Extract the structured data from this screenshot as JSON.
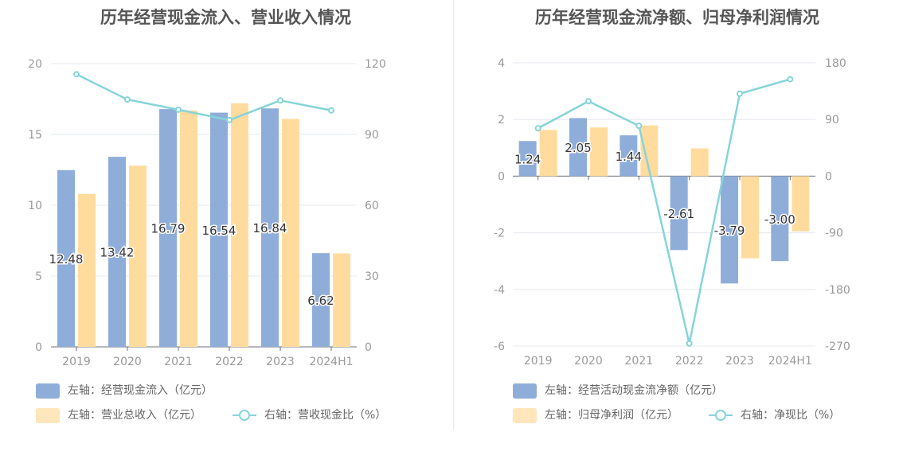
{
  "colors": {
    "bar_primary": "#8fadd9",
    "bar_secondary": "#ffdc9e",
    "line": "#86d4d9",
    "axis": "#999999",
    "grid": "#e6e8ef",
    "label": "#333333"
  },
  "chart_data": [
    {
      "type": "bar",
      "title": "历年经营现金流入、营业收入情况",
      "categories": [
        "2019",
        "2020",
        "2021",
        "2022",
        "2023",
        "2024H1"
      ],
      "y_left_ticks": [
        "20",
        "15",
        "10",
        "5",
        "0"
      ],
      "y_right_ticks": [
        "120",
        "90",
        "60",
        "30",
        "0"
      ],
      "ylim_left": [
        0,
        20
      ],
      "ylim_right": [
        0,
        120
      ],
      "series": [
        {
          "name": "左轴：经营现金流入（亿元）",
          "axis": "left",
          "kind": "bar",
          "values": [
            12.48,
            13.42,
            16.79,
            16.54,
            16.84,
            6.62
          ],
          "labels": [
            "12.48",
            "13.42",
            "16.79",
            "16.54",
            "16.84",
            "6.62"
          ]
        },
        {
          "name": "左轴：营业总收入（亿元）",
          "axis": "left",
          "kind": "bar",
          "values": [
            10.8,
            12.8,
            16.7,
            17.2,
            16.1,
            6.6
          ]
        },
        {
          "name": "右轴：营收现金比（%）",
          "axis": "right",
          "kind": "line",
          "values": [
            115.5,
            104.8,
            100.5,
            96.1,
            104.4,
            100.2
          ]
        }
      ]
    },
    {
      "type": "bar",
      "title": "历年经营现金流净额、归母净利润情况",
      "categories": [
        "2019",
        "2020",
        "2021",
        "2022",
        "2023",
        "2024H1"
      ],
      "y_left_ticks": [
        "4",
        "2",
        "0",
        "-2",
        "-4",
        "-6"
      ],
      "y_right_ticks": [
        "180",
        "90",
        "0",
        "-90",
        "-180",
        "-270"
      ],
      "ylim_left": [
        -6,
        4
      ],
      "ylim_right": [
        -270,
        180
      ],
      "series": [
        {
          "name": "左轴：经营活动现金流净额（亿元）",
          "axis": "left",
          "kind": "bar",
          "values": [
            1.24,
            2.05,
            1.44,
            -2.61,
            -3.79,
            -3.0
          ],
          "labels": [
            "1.24",
            "2.05",
            "1.44",
            "-2.61",
            "-3.79",
            "-3.00"
          ]
        },
        {
          "name": "左轴：归母净利润（亿元）",
          "axis": "left",
          "kind": "bar",
          "values": [
            1.63,
            1.72,
            1.79,
            0.98,
            -2.9,
            -1.95
          ]
        },
        {
          "name": "右轴：净现比（%）",
          "axis": "right",
          "kind": "line",
          "values": [
            76,
            119,
            80,
            -266,
            131,
            154
          ]
        }
      ]
    }
  ]
}
